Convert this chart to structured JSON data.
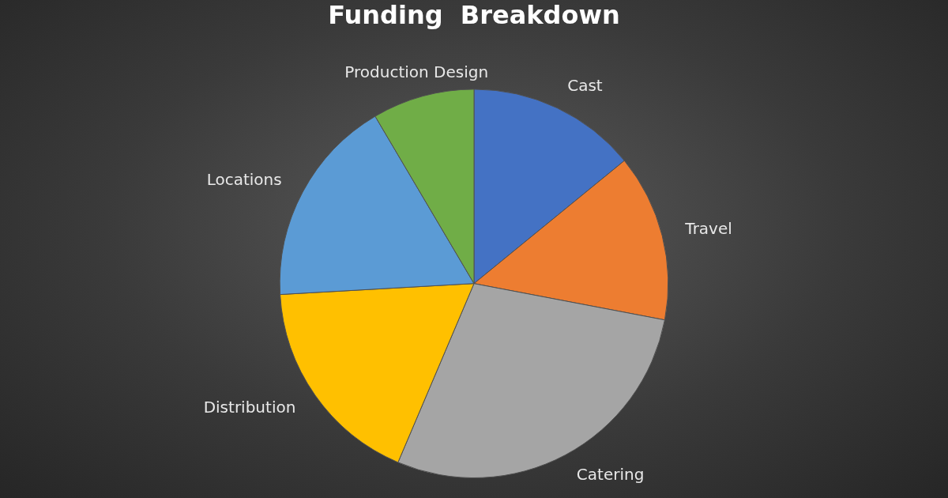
{
  "chart_data": {
    "type": "pie",
    "title": "Funding  Breakdown",
    "categories": [
      "Cast",
      "Travel",
      "Catering",
      "Distribution",
      "Locations",
      "Production Design"
    ],
    "values": [
      14.1,
      13.9,
      28.4,
      17.7,
      17.4,
      8.5
    ],
    "colors": [
      "#4472c4",
      "#ed7d31",
      "#a5a5a5",
      "#ffc000",
      "#5b9bd5",
      "#70ad47"
    ],
    "legend": false
  }
}
